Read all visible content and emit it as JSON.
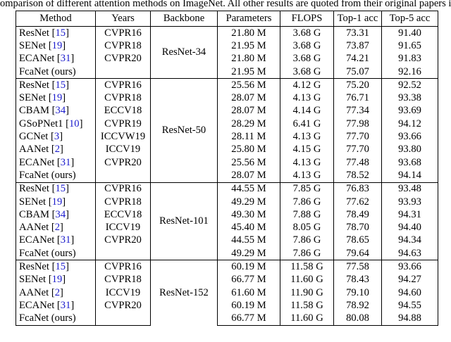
{
  "caption": "omparison of different attention methods on ImageNet. All other results are quoted from their original papers if avai",
  "table": {
    "header": [
      "Method",
      "Years",
      "Backbone",
      "Parameters",
      "FLOPS",
      "Top-1 acc",
      "Top-5 acc"
    ],
    "groups": [
      {
        "backbone": "ResNet-34",
        "rows": [
          {
            "method": "ResNet",
            "ref": "15",
            "year": "CVPR16",
            "params": "21.80 M",
            "flops": "3.68 G",
            "top1": "73.31",
            "top5": "91.40"
          },
          {
            "method": "SENet",
            "ref": "19",
            "year": "CVPR18",
            "params": "21.95 M",
            "flops": "3.68 G",
            "top1": "73.87",
            "top5": "91.65"
          },
          {
            "method": "ECANet",
            "ref": "31",
            "year": "CVPR20",
            "params": "21.80 M",
            "flops": "3.68 G",
            "top1": "74.21",
            "top5": "91.83"
          },
          {
            "method": "FcaNet (ours)",
            "ref": null,
            "year": null,
            "params": "21.95 M",
            "flops": "3.68 G",
            "top1": "75.07",
            "top5": "92.16"
          }
        ]
      },
      {
        "backbone": "ResNet-50",
        "rows": [
          {
            "method": "ResNet",
            "ref": "15",
            "year": "CVPR16",
            "params": "25.56 M",
            "flops": "4.12 G",
            "top1": "75.20",
            "top5": "92.52"
          },
          {
            "method": "SENet",
            "ref": "19",
            "year": "CVPR18",
            "params": "28.07 M",
            "flops": "4.13 G",
            "top1": "76.71",
            "top5": "93.38"
          },
          {
            "method": "CBAM",
            "ref": "34",
            "year": "ECCV18",
            "params": "28.07 M",
            "flops": "4.14 G",
            "top1": "77.34",
            "top5": "93.69"
          },
          {
            "method": "GSoPNet1",
            "ref": "10",
            "year": "CVPR19",
            "params": "28.29 M",
            "flops": "6.41 G",
            "top1": "77.98",
            "top5": "94.12"
          },
          {
            "method": "GCNet",
            "ref": "3",
            "year": "ICCVW19",
            "params": "28.11 M",
            "flops": "4.13 G",
            "top1": "77.70",
            "top5": "93.66"
          },
          {
            "method": "AANet",
            "ref": "2",
            "year": "ICCV19",
            "params": "25.80 M",
            "flops": "4.15 G",
            "top1": "77.70",
            "top5": "93.80"
          },
          {
            "method": "ECANet",
            "ref": "31",
            "year": "CVPR20",
            "params": "25.56 M",
            "flops": "4.13 G",
            "top1": "77.48",
            "top5": "93.68"
          },
          {
            "method": "FcaNet (ours)",
            "ref": null,
            "year": null,
            "params": "28.07 M",
            "flops": "4.13 G",
            "top1": "78.52",
            "top5": "94.14"
          }
        ]
      },
      {
        "backbone": "ResNet-101",
        "rows": [
          {
            "method": "ResNet",
            "ref": "15",
            "year": "CVPR16",
            "params": "44.55 M",
            "flops": "7.85 G",
            "top1": "76.83",
            "top5": "93.48"
          },
          {
            "method": "SENet",
            "ref": "19",
            "year": "CVPR18",
            "params": "49.29 M",
            "flops": "7.86 G",
            "top1": "77.62",
            "top5": "93.93"
          },
          {
            "method": "CBAM",
            "ref": "34",
            "year": "ECCV18",
            "params": "49.30 M",
            "flops": "7.88 G",
            "top1": "78.49",
            "top5": "94.31"
          },
          {
            "method": "AANet",
            "ref": "2",
            "year": "ICCV19",
            "params": "45.40 M",
            "flops": "8.05 G",
            "top1": "78.70",
            "top5": "94.40"
          },
          {
            "method": "ECANet",
            "ref": "31",
            "year": "CVPR20",
            "params": "44.55 M",
            "flops": "7.86 G",
            "top1": "78.65",
            "top5": "94.34"
          },
          {
            "method": "FcaNet (ours)",
            "ref": null,
            "year": null,
            "params": "49.29 M",
            "flops": "7.86 G",
            "top1": "79.64",
            "top5": "94.63"
          }
        ]
      },
      {
        "backbone": "ResNet-152",
        "rows": [
          {
            "method": "ResNet",
            "ref": "15",
            "year": "CVPR16",
            "params": "60.19 M",
            "flops": "11.58 G",
            "top1": "77.58",
            "top5": "93.66"
          },
          {
            "method": "SENet",
            "ref": "19",
            "year": "CVPR18",
            "params": "66.77 M",
            "flops": "11.60 G",
            "top1": "78.43",
            "top5": "94.27"
          },
          {
            "method": "AANet",
            "ref": "2",
            "year": "ICCV19",
            "params": "61.60 M",
            "flops": "11.90 G",
            "top1": "79.10",
            "top5": "94.60"
          },
          {
            "method": "ECANet",
            "ref": "31",
            "year": "CVPR20",
            "params": "60.19 M",
            "flops": "11.58 G",
            "top1": "78.92",
            "top5": "94.55"
          },
          {
            "method": "FcaNet (ours)",
            "ref": null,
            "year": null,
            "params": "66.77 M",
            "flops": "11.60 G",
            "top1": "80.08",
            "top5": "94.88"
          }
        ]
      }
    ]
  }
}
